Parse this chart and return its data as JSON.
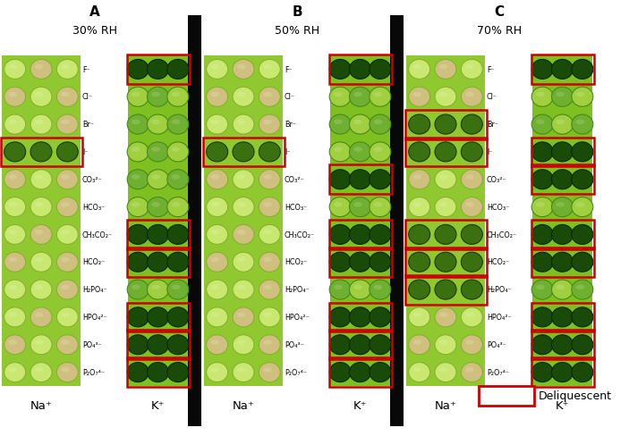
{
  "title_A": "A",
  "title_B": "B",
  "title_C": "C",
  "subtitle_A": "30% RH",
  "subtitle_B": "50% RH",
  "subtitle_C": "70% RH",
  "anion_labels": [
    "F⁻",
    "Cl⁻",
    "Br⁻",
    "I⁻",
    "CO₃²⁻",
    "HCO₃⁻",
    "CH₃CO₂⁻",
    "HCO₂⁻",
    "H₂PO₄⁻",
    "HPO₄²⁻",
    "PO₄³⁻",
    "P₂O₇⁴⁻"
  ],
  "cation_na": "Na⁺",
  "cation_k": "K⁺",
  "legend_label": "Deliquescent",
  "bg_color": "#ffffff",
  "red_box_color": "#cc0000",
  "na_plate_bg": "#90c830",
  "k_plate_bg": "#7dc020",
  "sep_color": "#080808",
  "na_circle_normal": "#c8e870",
  "na_circle_dark_well": "#d0c080",
  "na_circle_deliq": "#3a7010",
  "k_circle_normal": "#70b030",
  "k_circle_deliq": "#1a4a08",
  "k_circle_bright": "#a0d040",
  "panels": {
    "A": {
      "na_deliquescent_rows": [
        3
      ],
      "k_deliquescent_rows": [
        0,
        6,
        7,
        9,
        10,
        11
      ]
    },
    "B": {
      "na_deliquescent_rows": [
        3
      ],
      "k_deliquescent_rows": [
        0,
        4,
        6,
        7,
        9,
        10,
        11
      ]
    },
    "C": {
      "na_deliquescent_rows": [
        2,
        3,
        6,
        7,
        8
      ],
      "k_deliquescent_rows": [
        0,
        3,
        4,
        6,
        7,
        9,
        10,
        11
      ]
    }
  },
  "figsize": [
    7.03,
    4.88
  ],
  "dpi": 100
}
